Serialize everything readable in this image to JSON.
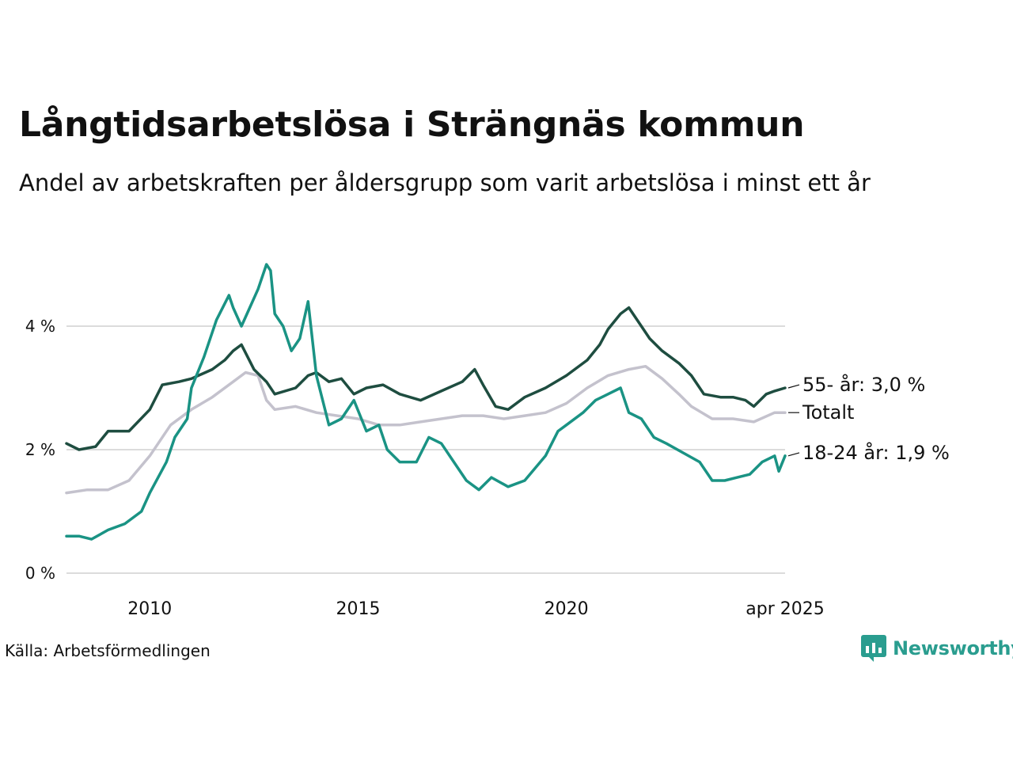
{
  "title": "Långtidsarbetslösa i Strängnäs kommun",
  "subtitle": "Andel av arbetskraften per åldersgrupp som varit arbetslösa i minst ett år",
  "source": "Källa: Arbetsförmedlingen",
  "brand": {
    "name": "Newsworthy",
    "icon": "newsworthy-logo-icon",
    "color": "#2a9d8f"
  },
  "chart_data": {
    "type": "line",
    "y_ticks": [
      {
        "value": 0,
        "label": "0 %"
      },
      {
        "value": 2,
        "label": "2 %"
      },
      {
        "value": 4,
        "label": "4 %"
      }
    ],
    "x_ticks": [
      {
        "value": 2010.0,
        "label": "2010"
      },
      {
        "value": 2015.0,
        "label": "2015"
      },
      {
        "value": 2020.0,
        "label": "2020"
      },
      {
        "value": 2025.25,
        "label": "apr 2025"
      }
    ],
    "xlim": [
      2008.0,
      2025.25
    ],
    "ylim": [
      0,
      5.5
    ],
    "grid": true,
    "series": [
      {
        "label": "Totalt",
        "color": "#c4c2cd",
        "end_label_y": 2.6,
        "points": [
          [
            2008.0,
            1.3
          ],
          [
            2008.5,
            1.35
          ],
          [
            2009.0,
            1.35
          ],
          [
            2009.5,
            1.5
          ],
          [
            2010.0,
            1.9
          ],
          [
            2010.5,
            2.4
          ],
          [
            2011.0,
            2.65
          ],
          [
            2011.5,
            2.85
          ],
          [
            2012.0,
            3.1
          ],
          [
            2012.3,
            3.25
          ],
          [
            2012.6,
            3.2
          ],
          [
            2012.8,
            2.8
          ],
          [
            2013.0,
            2.65
          ],
          [
            2013.5,
            2.7
          ],
          [
            2014.0,
            2.6
          ],
          [
            2014.5,
            2.55
          ],
          [
            2015.0,
            2.5
          ],
          [
            2015.5,
            2.4
          ],
          [
            2016.0,
            2.4
          ],
          [
            2016.5,
            2.45
          ],
          [
            2017.0,
            2.5
          ],
          [
            2017.5,
            2.55
          ],
          [
            2018.0,
            2.55
          ],
          [
            2018.5,
            2.5
          ],
          [
            2019.0,
            2.55
          ],
          [
            2019.5,
            2.6
          ],
          [
            2020.0,
            2.75
          ],
          [
            2020.5,
            3.0
          ],
          [
            2021.0,
            3.2
          ],
          [
            2021.5,
            3.3
          ],
          [
            2021.9,
            3.35
          ],
          [
            2022.3,
            3.15
          ],
          [
            2022.7,
            2.9
          ],
          [
            2023.0,
            2.7
          ],
          [
            2023.5,
            2.5
          ],
          [
            2024.0,
            2.5
          ],
          [
            2024.5,
            2.45
          ],
          [
            2025.0,
            2.6
          ],
          [
            2025.25,
            2.6
          ]
        ]
      },
      {
        "label": "55- år: 3,0 %",
        "color": "#1e4d40",
        "end_label_y": 3.05,
        "points": [
          [
            2008.0,
            2.1
          ],
          [
            2008.3,
            2.0
          ],
          [
            2008.7,
            2.05
          ],
          [
            2009.0,
            2.3
          ],
          [
            2009.5,
            2.3
          ],
          [
            2010.0,
            2.65
          ],
          [
            2010.3,
            3.05
          ],
          [
            2010.7,
            3.1
          ],
          [
            2011.0,
            3.15
          ],
          [
            2011.5,
            3.3
          ],
          [
            2011.8,
            3.45
          ],
          [
            2012.0,
            3.6
          ],
          [
            2012.2,
            3.7
          ],
          [
            2012.5,
            3.3
          ],
          [
            2012.8,
            3.1
          ],
          [
            2013.0,
            2.9
          ],
          [
            2013.5,
            3.0
          ],
          [
            2013.8,
            3.2
          ],
          [
            2014.0,
            3.25
          ],
          [
            2014.3,
            3.1
          ],
          [
            2014.6,
            3.15
          ],
          [
            2014.9,
            2.9
          ],
          [
            2015.2,
            3.0
          ],
          [
            2015.6,
            3.05
          ],
          [
            2016.0,
            2.9
          ],
          [
            2016.5,
            2.8
          ],
          [
            2017.0,
            2.95
          ],
          [
            2017.5,
            3.1
          ],
          [
            2017.8,
            3.3
          ],
          [
            2018.0,
            3.05
          ],
          [
            2018.3,
            2.7
          ],
          [
            2018.6,
            2.65
          ],
          [
            2019.0,
            2.85
          ],
          [
            2019.5,
            3.0
          ],
          [
            2020.0,
            3.2
          ],
          [
            2020.5,
            3.45
          ],
          [
            2020.8,
            3.7
          ],
          [
            2021.0,
            3.95
          ],
          [
            2021.3,
            4.2
          ],
          [
            2021.5,
            4.3
          ],
          [
            2021.8,
            4.0
          ],
          [
            2022.0,
            3.8
          ],
          [
            2022.3,
            3.6
          ],
          [
            2022.7,
            3.4
          ],
          [
            2023.0,
            3.2
          ],
          [
            2023.3,
            2.9
          ],
          [
            2023.7,
            2.85
          ],
          [
            2024.0,
            2.85
          ],
          [
            2024.3,
            2.8
          ],
          [
            2024.5,
            2.7
          ],
          [
            2024.8,
            2.9
          ],
          [
            2025.0,
            2.95
          ],
          [
            2025.25,
            3.0
          ]
        ]
      },
      {
        "label": "18-24 år: 1,9 %",
        "color": "#1a9384",
        "end_label_y": 1.95,
        "points": [
          [
            2008.0,
            0.6
          ],
          [
            2008.3,
            0.6
          ],
          [
            2008.6,
            0.55
          ],
          [
            2009.0,
            0.7
          ],
          [
            2009.4,
            0.8
          ],
          [
            2009.8,
            1.0
          ],
          [
            2010.0,
            1.3
          ],
          [
            2010.4,
            1.8
          ],
          [
            2010.6,
            2.2
          ],
          [
            2010.9,
            2.5
          ],
          [
            2011.0,
            3.0
          ],
          [
            2011.3,
            3.5
          ],
          [
            2011.6,
            4.1
          ],
          [
            2011.9,
            4.5
          ],
          [
            2012.0,
            4.3
          ],
          [
            2012.2,
            4.0
          ],
          [
            2012.4,
            4.3
          ],
          [
            2012.6,
            4.6
          ],
          [
            2012.8,
            5.0
          ],
          [
            2012.9,
            4.9
          ],
          [
            2013.0,
            4.2
          ],
          [
            2013.2,
            4.0
          ],
          [
            2013.4,
            3.6
          ],
          [
            2013.6,
            3.8
          ],
          [
            2013.8,
            4.4
          ],
          [
            2014.0,
            3.2
          ],
          [
            2014.3,
            2.4
          ],
          [
            2014.6,
            2.5
          ],
          [
            2014.9,
            2.8
          ],
          [
            2015.2,
            2.3
          ],
          [
            2015.5,
            2.4
          ],
          [
            2015.7,
            2.0
          ],
          [
            2016.0,
            1.8
          ],
          [
            2016.4,
            1.8
          ],
          [
            2016.7,
            2.2
          ],
          [
            2017.0,
            2.1
          ],
          [
            2017.3,
            1.8
          ],
          [
            2017.6,
            1.5
          ],
          [
            2017.9,
            1.35
          ],
          [
            2018.2,
            1.55
          ],
          [
            2018.6,
            1.4
          ],
          [
            2019.0,
            1.5
          ],
          [
            2019.5,
            1.9
          ],
          [
            2019.8,
            2.3
          ],
          [
            2020.0,
            2.4
          ],
          [
            2020.4,
            2.6
          ],
          [
            2020.7,
            2.8
          ],
          [
            2021.0,
            2.9
          ],
          [
            2021.3,
            3.0
          ],
          [
            2021.5,
            2.6
          ],
          [
            2021.8,
            2.5
          ],
          [
            2022.1,
            2.2
          ],
          [
            2022.4,
            2.1
          ],
          [
            2022.8,
            1.95
          ],
          [
            2023.2,
            1.8
          ],
          [
            2023.5,
            1.5
          ],
          [
            2023.8,
            1.5
          ],
          [
            2024.1,
            1.55
          ],
          [
            2024.4,
            1.6
          ],
          [
            2024.7,
            1.8
          ],
          [
            2025.0,
            1.9
          ],
          [
            2025.1,
            1.65
          ],
          [
            2025.25,
            1.9
          ]
        ]
      }
    ]
  }
}
